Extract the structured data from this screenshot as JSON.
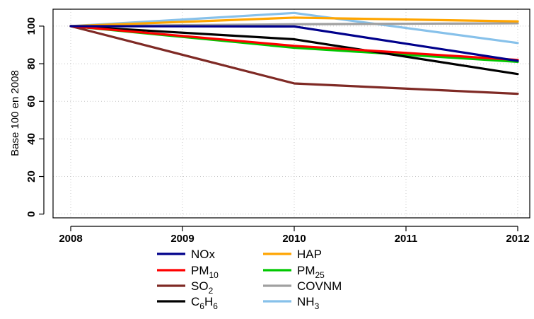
{
  "chart_data": {
    "type": "line",
    "title": "",
    "xlabel": "",
    "ylabel": "Base 100 en 2008",
    "x": [
      2008,
      2009,
      2010,
      2011,
      2012
    ],
    "xlim": [
      2008,
      2012
    ],
    "ylim": [
      -2,
      109
    ],
    "yticks": [
      0,
      20,
      40,
      60,
      80,
      100
    ],
    "grid": true,
    "legend_position": "bottom",
    "series": [
      {
        "name": "NOx",
        "sub": "",
        "color": "#00008b",
        "x": [
          2008,
          2010,
          2012
        ],
        "values": [
          100,
          99.8,
          81.5
        ]
      },
      {
        "name": "PM",
        "sub": "10",
        "color": "#ff0000",
        "x": [
          2008,
          2010,
          2012
        ],
        "values": [
          100,
          89.5,
          82
        ]
      },
      {
        "name": "SO",
        "sub": "2",
        "color": "#7f2a25",
        "x": [
          2008,
          2010,
          2012
        ],
        "values": [
          100,
          69.5,
          64
        ]
      },
      {
        "name": "C",
        "sub": "6",
        "sub2": "6",
        "mid": "H",
        "color": "#000000",
        "x": [
          2008,
          2010,
          2012
        ],
        "values": [
          100,
          93,
          74.5
        ]
      },
      {
        "name": "HAP",
        "sub": "",
        "color": "#ffa500",
        "x": [
          2008,
          2010,
          2012
        ],
        "values": [
          100,
          104.5,
          102.5
        ]
      },
      {
        "name": "PM",
        "sub": "25",
        "color": "#00c800",
        "x": [
          2008,
          2010,
          2012
        ],
        "values": [
          100,
          88.5,
          81
        ]
      },
      {
        "name": "COVNM",
        "sub": "",
        "color": "#a0a0a0",
        "x": [
          2008,
          2010,
          2012
        ],
        "values": [
          100,
          101,
          101.5
        ]
      },
      {
        "name": "NH",
        "sub": "3",
        "color": "#87c1ea",
        "x": [
          2008,
          2010,
          2012
        ],
        "values": [
          100,
          107,
          91
        ]
      }
    ]
  }
}
